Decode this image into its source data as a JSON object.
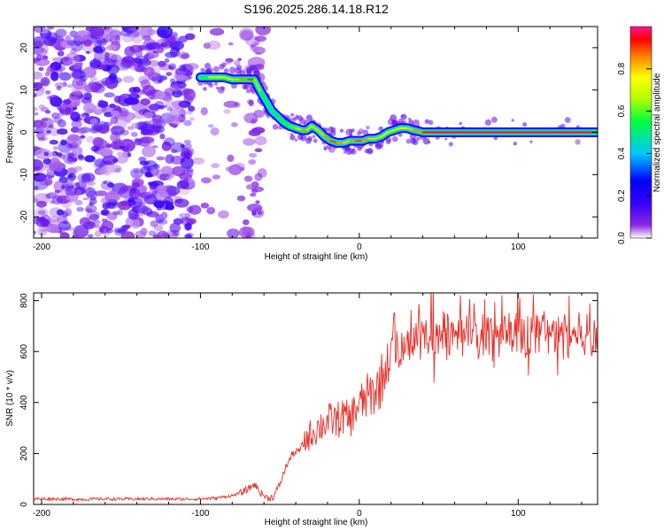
{
  "title": "S196.2025.286.14.18.R12",
  "chart_data": [
    {
      "type": "heatmap",
      "xlabel": "Height of straight line (km)",
      "ylabel": "Frequency (Hz)",
      "xlim": [
        -205,
        150
      ],
      "ylim": [
        -25,
        25
      ],
      "xticks": [
        -200,
        -100,
        0,
        100
      ],
      "yticks": [
        -20,
        -10,
        0,
        10,
        20
      ],
      "colorbar": {
        "label": "Normalized spectral amplitude",
        "range": [
          0,
          1
        ],
        "ticks": [
          "0.0",
          "0.2",
          "0.4",
          "0.6",
          "0.8"
        ],
        "tick_values": [
          0.0,
          0.2,
          0.4,
          0.6,
          0.8
        ],
        "colors": [
          "#ffffff",
          "#6a00ff",
          "#0000ff",
          "#00c8ff",
          "#00ff40",
          "#b4ff00",
          "#ffff00",
          "#ff8000",
          "#ff0000",
          "#ff1493"
        ]
      },
      "ridge": {
        "x": [
          -100,
          -95,
          -90,
          -85,
          -80,
          -75,
          -70,
          -66,
          -62,
          -58,
          -55,
          -52,
          -48,
          -44,
          -40,
          -36,
          -33,
          -30,
          -26,
          -22,
          -18,
          -14,
          -10,
          -6,
          -2,
          2,
          6,
          10,
          14,
          18,
          22,
          26,
          30,
          34,
          40,
          50,
          60,
          80,
          100,
          120,
          150
        ],
        "y": [
          13,
          13,
          13,
          13,
          12.5,
          12.5,
          12.5,
          12.5,
          9.5,
          7,
          5,
          4,
          2.5,
          1.5,
          1,
          0.5,
          0.5,
          1.5,
          0.5,
          -1,
          -2,
          -2.5,
          -2.5,
          -2,
          -2,
          -2,
          -1.5,
          -1.5,
          -1,
          0,
          0.5,
          1,
          1,
          0.5,
          0,
          0,
          0,
          0,
          0,
          0,
          0
        ],
        "intensity": [
          0.55,
          0.7,
          0.75,
          0.7,
          0.8,
          0.85,
          0.9,
          0.65,
          0.5,
          0.45,
          0.45,
          0.5,
          0.55,
          0.6,
          0.7,
          0.85,
          0.8,
          0.7,
          0.8,
          0.85,
          0.9,
          0.85,
          0.8,
          0.85,
          0.9,
          0.85,
          0.8,
          0.8,
          0.75,
          0.7,
          0.7,
          0.75,
          0.8,
          0.85,
          0.95,
          0.95,
          0.95,
          0.95,
          0.95,
          0.95,
          0.95
        ]
      },
      "noise_region_x": [
        -205,
        -60
      ]
    },
    {
      "type": "line",
      "xlabel": "Height of straight line (km)",
      "ylabel": "SNR (10 * v/v)",
      "xlim": [
        -205,
        150
      ],
      "ylim": [
        0,
        830
      ],
      "xticks": [
        -200,
        -100,
        0,
        100
      ],
      "yticks": [
        0,
        200,
        400,
        600,
        800
      ],
      "color": "#e8312a",
      "series": [
        {
          "name": "SNR",
          "x": [
            -205,
            -190,
            -175,
            -160,
            -145,
            -130,
            -115,
            -100,
            -90,
            -80,
            -75,
            -70,
            -66,
            -62,
            -58,
            -54,
            -50,
            -46,
            -42,
            -38,
            -34,
            -30,
            -26,
            -22,
            -18,
            -14,
            -10,
            -6,
            -2,
            2,
            6,
            10,
            14,
            18,
            22,
            26,
            30,
            34,
            38,
            45,
            55,
            65,
            75,
            85,
            95,
            105,
            115,
            125,
            135,
            145,
            150
          ],
          "values": [
            22,
            22,
            20,
            22,
            21,
            22,
            21,
            22,
            25,
            35,
            45,
            60,
            80,
            45,
            25,
            30,
            80,
            150,
            200,
            210,
            250,
            280,
            300,
            320,
            330,
            330,
            345,
            330,
            380,
            400,
            430,
            440,
            490,
            560,
            600,
            620,
            640,
            660,
            660,
            660,
            670,
            660,
            660,
            660,
            670,
            660,
            670,
            660,
            670,
            670,
            650
          ]
        }
      ]
    }
  ]
}
